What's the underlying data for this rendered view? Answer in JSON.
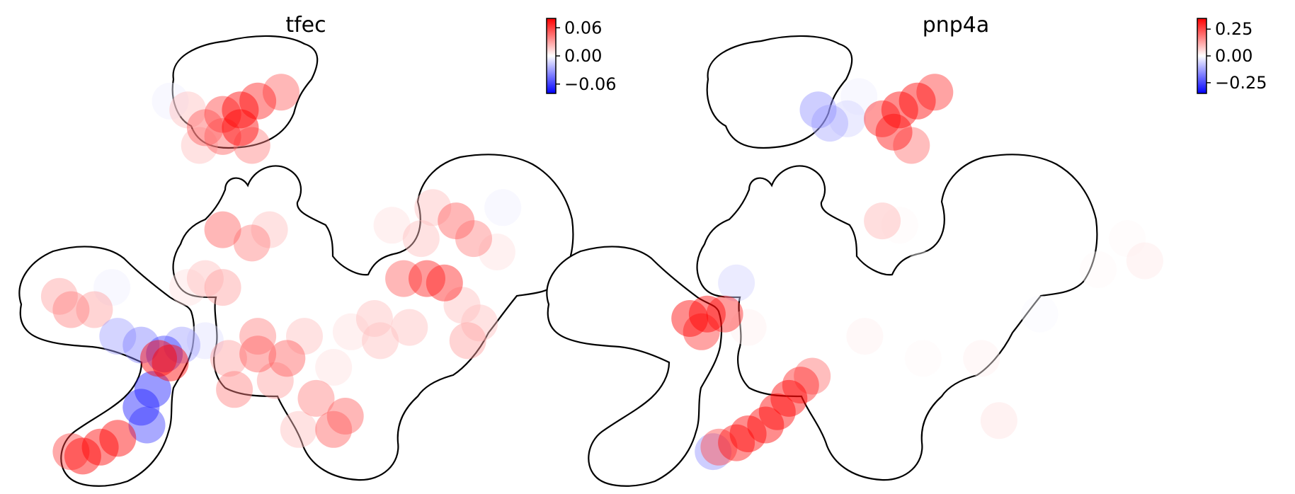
{
  "chart_data": [
    {
      "type": "scatter",
      "title": "tfec",
      "xlabel": "",
      "ylabel": "",
      "colormap": [
        "#0000ff",
        "#ffffff",
        "#ff0000"
      ],
      "colorbar": {
        "vmin": -0.08,
        "vmax": 0.08,
        "ticks": [
          0.06,
          0.0,
          -0.06
        ],
        "tick_labels": [
          "0.06",
          "0.00",
          "−0.06"
        ]
      },
      "outline_color": "#000000",
      "xlim": [
        0,
        100
      ],
      "ylim": [
        0,
        100
      ],
      "points": [
        {
          "x": 42,
          "y": 86,
          "v": 0.07
        },
        {
          "x": 39,
          "y": 84,
          "v": 0.08
        },
        {
          "x": 36,
          "y": 83,
          "v": 0.06
        },
        {
          "x": 46,
          "y": 88,
          "v": 0.05
        },
        {
          "x": 33,
          "y": 80,
          "v": 0.05
        },
        {
          "x": 39,
          "y": 80,
          "v": 0.08
        },
        {
          "x": 30,
          "y": 84,
          "v": 0.02
        },
        {
          "x": 27,
          "y": 86,
          "v": -0.005
        },
        {
          "x": 41,
          "y": 76,
          "v": 0.04
        },
        {
          "x": 32,
          "y": 76,
          "v": 0.02
        },
        {
          "x": 36,
          "y": 78,
          "v": 0.05
        },
        {
          "x": 36,
          "y": 57,
          "v": 0.05
        },
        {
          "x": 41,
          "y": 54,
          "v": 0.04
        },
        {
          "x": 44,
          "y": 57,
          "v": 0.02
        },
        {
          "x": 33,
          "y": 46,
          "v": 0.02
        },
        {
          "x": 36,
          "y": 44,
          "v": 0.03
        },
        {
          "x": 30,
          "y": 44,
          "v": 0.01
        },
        {
          "x": 72,
          "y": 62,
          "v": 0.02
        },
        {
          "x": 76,
          "y": 59,
          "v": 0.05
        },
        {
          "x": 79,
          "y": 55,
          "v": 0.04
        },
        {
          "x": 71,
          "y": 46,
          "v": 0.07
        },
        {
          "x": 74,
          "y": 45,
          "v": 0.07
        },
        {
          "x": 67,
          "y": 46,
          "v": 0.05
        },
        {
          "x": 83,
          "y": 52,
          "v": 0.01
        },
        {
          "x": 84,
          "y": 62,
          "v": -0.005
        },
        {
          "x": 70,
          "y": 55,
          "v": 0.02
        },
        {
          "x": 77,
          "y": 40,
          "v": 0.02
        },
        {
          "x": 65,
          "y": 58,
          "v": 0.01
        },
        {
          "x": 10,
          "y": 39,
          "v": 0.04
        },
        {
          "x": 14,
          "y": 39,
          "v": 0.03
        },
        {
          "x": 8,
          "y": 42,
          "v": 0.03
        },
        {
          "x": 5,
          "y": 37,
          "v": 0.0
        },
        {
          "x": 17,
          "y": 44,
          "v": -0.005
        },
        {
          "x": 18,
          "y": 33,
          "v": -0.03
        },
        {
          "x": 22,
          "y": 31,
          "v": -0.04
        },
        {
          "x": 26,
          "y": 29,
          "v": -0.06
        },
        {
          "x": 29,
          "y": 31,
          "v": -0.03
        },
        {
          "x": 33,
          "y": 32,
          "v": -0.01
        },
        {
          "x": 25,
          "y": 28,
          "v": 0.08
        },
        {
          "x": 27,
          "y": 27,
          "v": 0.08
        },
        {
          "x": 24,
          "y": 21,
          "v": -0.07
        },
        {
          "x": 22,
          "y": 17,
          "v": -0.07
        },
        {
          "x": 23,
          "y": 13,
          "v": -0.06
        },
        {
          "x": 18,
          "y": 10,
          "v": 0.08
        },
        {
          "x": 15,
          "y": 8,
          "v": 0.08
        },
        {
          "x": 12,
          "y": 6,
          "v": 0.08
        },
        {
          "x": 10,
          "y": 7,
          "v": 0.06
        },
        {
          "x": 42,
          "y": 29,
          "v": 0.05
        },
        {
          "x": 47,
          "y": 28,
          "v": 0.05
        },
        {
          "x": 42,
          "y": 33,
          "v": 0.04
        },
        {
          "x": 38,
          "y": 21,
          "v": 0.04
        },
        {
          "x": 45,
          "y": 23,
          "v": 0.03
        },
        {
          "x": 50,
          "y": 33,
          "v": 0.02
        },
        {
          "x": 37,
          "y": 28,
          "v": 0.03
        },
        {
          "x": 52,
          "y": 19,
          "v": 0.04
        },
        {
          "x": 55,
          "y": 12,
          "v": 0.05
        },
        {
          "x": 57,
          "y": 15,
          "v": 0.05
        },
        {
          "x": 49,
          "y": 12,
          "v": 0.02
        },
        {
          "x": 55,
          "y": 26,
          "v": 0.01
        },
        {
          "x": 62,
          "y": 37,
          "v": 0.02
        },
        {
          "x": 68,
          "y": 35,
          "v": 0.02
        },
        {
          "x": 63,
          "y": 32,
          "v": 0.02
        },
        {
          "x": 78,
          "y": 32,
          "v": 0.03
        },
        {
          "x": 80,
          "y": 36,
          "v": 0.02
        },
        {
          "x": 58,
          "y": 34,
          "v": 0.01
        }
      ]
    },
    {
      "type": "scatter",
      "title": "pnp4a",
      "xlabel": "",
      "ylabel": "",
      "colormap": [
        "#0000ff",
        "#ffffff",
        "#ff0000"
      ],
      "colorbar": {
        "vmin": -0.35,
        "vmax": 0.35,
        "ticks": [
          0.25,
          0.0,
          -0.25
        ],
        "tick_labels": [
          "0.25",
          "0.00",
          "−0.25"
        ]
      },
      "outline_color": "#000000",
      "xlim": [
        0,
        100
      ],
      "ylim": [
        0,
        100
      ],
      "points": [
        {
          "x": 41,
          "y": 84,
          "v": 0.35
        },
        {
          "x": 44,
          "y": 86,
          "v": 0.35
        },
        {
          "x": 40,
          "y": 79,
          "v": 0.33
        },
        {
          "x": 38,
          "y": 82,
          "v": 0.3
        },
        {
          "x": 47,
          "y": 88,
          "v": 0.28
        },
        {
          "x": 43,
          "y": 76,
          "v": 0.2
        },
        {
          "x": 27,
          "y": 84,
          "v": -0.15
        },
        {
          "x": 29,
          "y": 81,
          "v": -0.12
        },
        {
          "x": 32,
          "y": 82,
          "v": -0.06
        },
        {
          "x": 34,
          "y": 87,
          "v": -0.02
        },
        {
          "x": 38,
          "y": 59,
          "v": 0.1
        },
        {
          "x": 41,
          "y": 58,
          "v": 0.01
        },
        {
          "x": 45,
          "y": 48,
          "v": 0.0
        },
        {
          "x": 55,
          "y": 40,
          "v": 0.0
        },
        {
          "x": 80,
          "y": 55,
          "v": 0.01
        },
        {
          "x": 83,
          "y": 50,
          "v": 0.03
        },
        {
          "x": 75,
          "y": 48,
          "v": 0.01
        },
        {
          "x": 65,
          "y": 38,
          "v": -0.01
        },
        {
          "x": 55,
          "y": 28,
          "v": 0.02
        },
        {
          "x": 58,
          "y": 14,
          "v": 0.04
        },
        {
          "x": 45,
          "y": 28,
          "v": 0.01
        },
        {
          "x": 35,
          "y": 33,
          "v": 0.02
        },
        {
          "x": 5,
          "y": 37,
          "v": 0.35
        },
        {
          "x": 8,
          "y": 38,
          "v": 0.35
        },
        {
          "x": 11,
          "y": 38,
          "v": 0.3
        },
        {
          "x": 7,
          "y": 34,
          "v": 0.28
        },
        {
          "x": 13,
          "y": 45,
          "v": -0.06
        },
        {
          "x": 15,
          "y": 35,
          "v": 0.02
        },
        {
          "x": 24,
          "y": 22,
          "v": 0.3
        },
        {
          "x": 22,
          "y": 19,
          "v": 0.35
        },
        {
          "x": 20,
          "y": 16,
          "v": 0.35
        },
        {
          "x": 18,
          "y": 13,
          "v": 0.35
        },
        {
          "x": 15,
          "y": 11,
          "v": 0.35
        },
        {
          "x": 13,
          "y": 9,
          "v": 0.33
        },
        {
          "x": 10,
          "y": 8,
          "v": 0.25
        },
        {
          "x": 9,
          "y": 7,
          "v": -0.15
        },
        {
          "x": 26,
          "y": 24,
          "v": 0.2
        }
      ]
    }
  ]
}
